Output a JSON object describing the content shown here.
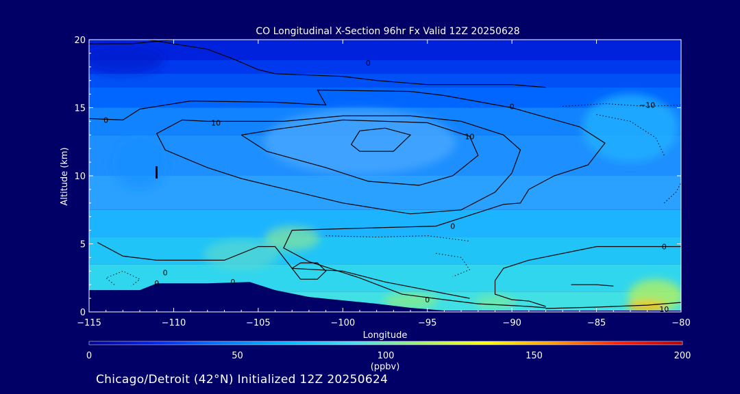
{
  "chart_data": {
    "type": "heatmap",
    "title": "CO Longitudinal X-Section 96hr  Fx Valid 12Z 20250628",
    "xlabel": "Longitude",
    "ylabel": "Altitude (km)",
    "xlim": [
      -115,
      -80
    ],
    "ylim": [
      0,
      20
    ],
    "x_ticks": [
      -115,
      -110,
      -105,
      -100,
      -95,
      -90,
      -85,
      -80
    ],
    "x_tick_labels": [
      "−115",
      "−110",
      "−105",
      "−100",
      "−95",
      "−90",
      "−85",
      "−80"
    ],
    "y_ticks": [
      0,
      5,
      10,
      15,
      20
    ],
    "y_tick_labels": [
      "0",
      "5",
      "10",
      "15",
      "20"
    ],
    "colorbar": {
      "range": [
        0,
        200
      ],
      "ticks": [
        0,
        50,
        100,
        150,
        200
      ],
      "tick_labels": [
        "0",
        "50",
        "100",
        "150",
        "200"
      ],
      "unit": "(ppbv)",
      "colors": [
        "#00008c",
        "#0022ee",
        "#0077ff",
        "#00b8ff",
        "#44ddee",
        "#a0f070",
        "#ffff00",
        "#ffa000",
        "#ff2000",
        "#b00000"
      ]
    },
    "terrain_km": [
      [
        -115,
        1.6
      ],
      [
        -112,
        1.6
      ],
      [
        -111,
        2.1
      ],
      [
        -108,
        2.1
      ],
      [
        -105.5,
        2.2
      ],
      [
        -104,
        1.6
      ],
      [
        -102,
        1.1
      ],
      [
        -98,
        0.6
      ],
      [
        -96,
        0.3
      ],
      [
        -94,
        0.1
      ],
      [
        -80,
        0.1
      ]
    ],
    "contour_labels": [
      {
        "text": "0",
        "lon": -114,
        "alt": 14.1
      },
      {
        "text": "0",
        "lon": -98.5,
        "alt": 18.3
      },
      {
        "text": "10",
        "lon": -107.5,
        "alt": 13.9
      },
      {
        "text": "10",
        "lon": -92.5,
        "alt": 12.9
      },
      {
        "text": "0",
        "lon": -90,
        "alt": 15.1
      },
      {
        "text": "−10",
        "lon": -82,
        "alt": 15.2
      },
      {
        "text": "0",
        "lon": -93.5,
        "alt": 6.3
      },
      {
        "text": "0",
        "lon": -81,
        "alt": 4.8
      },
      {
        "text": "0",
        "lon": -110.5,
        "alt": 2.9
      },
      {
        "text": "0",
        "lon": -111,
        "alt": 2.1
      },
      {
        "text": "0",
        "lon": -106.5,
        "alt": 2.2
      },
      {
        "text": "0",
        "lon": -95,
        "alt": 0.9
      },
      {
        "text": "10",
        "lon": -81,
        "alt": 0.2
      }
    ],
    "contours_solid": [
      [
        [
          -111.5,
          20
        ],
        [
          -108,
          19.3
        ],
        [
          -106.5,
          18.6
        ],
        [
          -105,
          17.8
        ],
        [
          -104,
          17.5
        ],
        [
          -100,
          17.3
        ],
        [
          -98,
          17
        ],
        [
          -95,
          16.7
        ],
        [
          -90,
          16.7
        ],
        [
          -88,
          16.5
        ]
      ],
      [
        [
          -115,
          14.2
        ],
        [
          -113,
          14.1
        ],
        [
          -112,
          14.9
        ],
        [
          -109,
          15.5
        ],
        [
          -104,
          15.4
        ],
        [
          -101,
          15.2
        ],
        [
          -101.5,
          16.3
        ],
        [
          -96,
          16.2
        ],
        [
          -94,
          15.9
        ],
        [
          -90,
          15.0
        ],
        [
          -86,
          13.6
        ],
        [
          -84.5,
          12.4
        ],
        [
          -85.5,
          10.8
        ],
        [
          -87.5,
          10
        ],
        [
          -89,
          9.0
        ],
        [
          -89.5,
          8.0
        ],
        [
          -90.5,
          7.9
        ],
        [
          -94.5,
          6.3
        ],
        [
          -97.5,
          6.2
        ],
        [
          -103,
          6.0
        ],
        [
          -103.5,
          4.7
        ],
        [
          -102,
          3.7
        ],
        [
          -99,
          2.5
        ],
        [
          -96.5,
          1.3
        ],
        [
          -94,
          0.9
        ],
        [
          -92,
          0.6
        ],
        [
          -89,
          0.4
        ],
        [
          -88,
          0.3
        ]
      ],
      [
        [
          -109.5,
          14.1
        ],
        [
          -111,
          13.1
        ],
        [
          -110.5,
          11.9
        ],
        [
          -108,
          10.6
        ],
        [
          -106,
          9.8
        ],
        [
          -103,
          8.9
        ],
        [
          -100,
          8.0
        ],
        [
          -96,
          7.2
        ],
        [
          -93,
          7.5
        ],
        [
          -91,
          8.8
        ],
        [
          -90,
          10.2
        ],
        [
          -89.5,
          11.9
        ],
        [
          -90.5,
          13.0
        ],
        [
          -93,
          14.0
        ],
        [
          -96,
          14.4
        ],
        [
          -100,
          14.4
        ],
        [
          -103.5,
          14.0
        ],
        [
          -106.5,
          14.0
        ],
        [
          -108,
          14.0
        ],
        [
          -109.5,
          14.1
        ]
      ],
      [
        [
          -106,
          13.0
        ],
        [
          -104.5,
          11.8
        ],
        [
          -101,
          10.6
        ],
        [
          -98.5,
          9.6
        ],
        [
          -95.5,
          9.3
        ],
        [
          -93.5,
          10.0
        ],
        [
          -92,
          11.5
        ],
        [
          -92.5,
          12.9
        ],
        [
          -95,
          13.9
        ],
        [
          -100,
          14.1
        ],
        [
          -104,
          13.4
        ],
        [
          -106,
          13.0
        ]
      ],
      [
        [
          -99.5,
          12.3
        ],
        [
          -99,
          13.3
        ],
        [
          -97.5,
          13.5
        ],
        [
          -96,
          13.0
        ],
        [
          -97,
          11.8
        ],
        [
          -99,
          11.8
        ],
        [
          -99.5,
          12.3
        ]
      ],
      [
        [
          -114.5,
          5.1
        ],
        [
          -113,
          4.1
        ],
        [
          -111,
          3.8
        ],
        [
          -107,
          3.8
        ],
        [
          -105,
          4.8
        ],
        [
          -104,
          4.8
        ],
        [
          -103,
          3.2
        ],
        [
          -100,
          3.0
        ],
        [
          -97.5,
          2.2
        ],
        [
          -92.5,
          1.0
        ]
      ],
      [
        [
          -102.5,
          2.4
        ],
        [
          -103,
          3.2
        ],
        [
          -102.5,
          3.6
        ],
        [
          -101.5,
          3.6
        ],
        [
          -101,
          3.0
        ],
        [
          -101.5,
          2.4
        ],
        [
          -102.5,
          2.4
        ]
      ],
      [
        [
          -80,
          4.8
        ],
        [
          -85,
          4.8
        ],
        [
          -89,
          3.8
        ],
        [
          -90.5,
          3.2
        ],
        [
          -91,
          2.3
        ],
        [
          -91,
          1.3
        ],
        [
          -90,
          0.9
        ],
        [
          -89,
          0.8
        ],
        [
          -88,
          0.4
        ]
      ],
      [
        [
          -86.5,
          2.0
        ],
        [
          -85,
          2.0
        ],
        [
          -84,
          1.9
        ]
      ],
      [
        [
          -88,
          0.25
        ],
        [
          -85,
          0.35
        ],
        [
          -82,
          0.5
        ],
        [
          -80,
          0.7
        ]
      ],
      [
        [
          -110,
          20
        ],
        [
          -112.5,
          19.7
        ],
        [
          -115,
          19.7
        ]
      ]
    ],
    "contours_dotted": [
      [
        [
          -113.5,
          2.0
        ],
        [
          -114,
          2.5
        ],
        [
          -113,
          3.0
        ],
        [
          -112,
          2.4
        ],
        [
          -112.5,
          1.9
        ]
      ],
      [
        [
          -101,
          5.6
        ],
        [
          -98,
          5.5
        ],
        [
          -95,
          5.6
        ],
        [
          -92.5,
          5.2
        ]
      ],
      [
        [
          -94.5,
          4.3
        ],
        [
          -93,
          4.0
        ],
        [
          -92.5,
          3.1
        ],
        [
          -93.5,
          2.6
        ]
      ],
      [
        [
          -87,
          15.1
        ],
        [
          -84.5,
          15.3
        ],
        [
          -82,
          15.1
        ],
        [
          -80,
          15.2
        ]
      ],
      [
        [
          -85,
          14.5
        ],
        [
          -83,
          14.0
        ],
        [
          -81.5,
          12.8
        ],
        [
          -81,
          11.5
        ]
      ],
      [
        [
          -81,
          8.0
        ],
        [
          -80.3,
          8.8
        ],
        [
          -80,
          9.5
        ]
      ]
    ]
  },
  "footer": {
    "location_text": "Chicago/Detroit (42°N) Initialized 12Z 20250624"
  }
}
